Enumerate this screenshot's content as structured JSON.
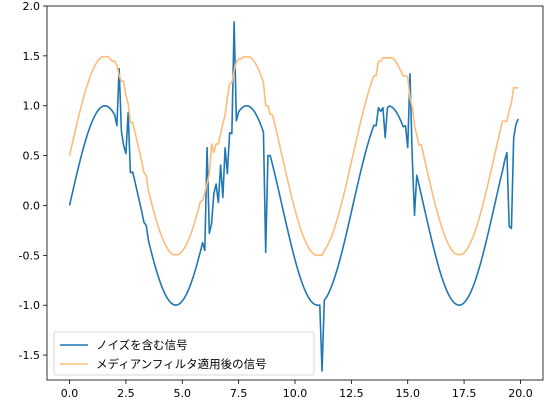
{
  "chart_data": {
    "type": "line",
    "title": "",
    "xlabel": "",
    "ylabel": "",
    "xlim": [
      -1.0,
      21.0
    ],
    "ylim": [
      -1.75,
      2.0
    ],
    "xticks": [
      0.0,
      2.5,
      5.0,
      7.5,
      10.0,
      12.5,
      15.0,
      17.5,
      20.0
    ],
    "xtick_labels": [
      "0.0",
      "2.5",
      "5.0",
      "7.5",
      "10.0",
      "12.5",
      "15.0",
      "17.5",
      "20.0"
    ],
    "yticks": [
      -1.5,
      -1.0,
      -0.5,
      0.0,
      0.5,
      1.0,
      1.5,
      2.0
    ],
    "ytick_labels": [
      "-1.5",
      "-1.0",
      "-0.5",
      "0.0",
      "0.5",
      "1.0",
      "1.5",
      "2.0"
    ],
    "grid": false,
    "legend_position": "lower-left",
    "series": [
      {
        "name": "ノイズを含む信号",
        "color": "#1f77b4",
        "base": "sin",
        "offset": 0.0,
        "x_start": 0.0,
        "x_end": 19.9,
        "x_step": 0.1,
        "spikes": [
          [
            2.1,
            0.8
          ],
          [
            2.2,
            1.37
          ],
          [
            2.4,
            0.6
          ],
          [
            2.5,
            0.52
          ],
          [
            2.6,
            0.93
          ],
          [
            2.7,
            0.33
          ],
          [
            3.3,
            -0.17
          ],
          [
            3.4,
            -0.2
          ],
          [
            3.5,
            -0.35
          ],
          [
            6.0,
            -0.45
          ],
          [
            6.1,
            0.58
          ],
          [
            6.2,
            -0.28
          ],
          [
            6.3,
            -0.18
          ],
          [
            6.6,
            0.03
          ],
          [
            6.8,
            0.08
          ],
          [
            7.0,
            0.32
          ],
          [
            7.2,
            0.72
          ],
          [
            7.3,
            1.84
          ],
          [
            7.4,
            0.85
          ],
          [
            8.7,
            -0.47
          ],
          [
            8.8,
            0.5
          ],
          [
            11.1,
            -1.0
          ],
          [
            11.2,
            -1.66
          ],
          [
            11.3,
            -0.95
          ],
          [
            13.6,
            0.8
          ],
          [
            13.7,
            0.98
          ],
          [
            13.9,
            0.98
          ],
          [
            14.0,
            0.68
          ],
          [
            14.1,
            0.98
          ],
          [
            14.9,
            0.8
          ],
          [
            15.0,
            0.58
          ],
          [
            15.1,
            1.32
          ],
          [
            15.3,
            -0.1
          ],
          [
            19.1,
            0.25
          ],
          [
            19.3,
            0.45
          ],
          [
            19.4,
            0.53
          ],
          [
            19.5,
            -0.21
          ],
          [
            19.6,
            -0.23
          ],
          [
            19.7,
            0.68
          ]
        ]
      },
      {
        "name": "メディアンフィルタ適用後の信号",
        "color": "#ffbb78",
        "base": "median",
        "offset": 0.5,
        "window": 5
      }
    ]
  }
}
